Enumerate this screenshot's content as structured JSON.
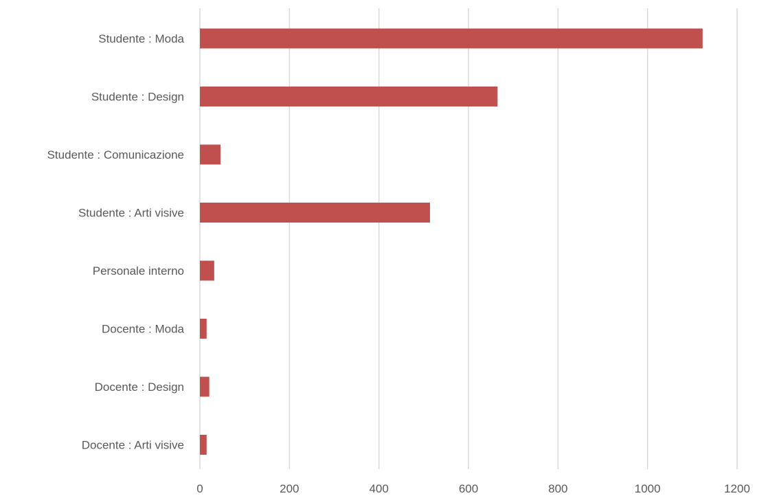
{
  "chart_data": {
    "type": "bar",
    "orientation": "horizontal",
    "title": "",
    "xlabel": "",
    "ylabel": "",
    "categories": [
      "Studente : Moda",
      "Studente : Design",
      "Studente : Comunicazione",
      "Studente : Arti visive",
      "Personale interno",
      "Docente : Moda",
      "Docente : Design",
      "Docente : Arti visive"
    ],
    "values": [
      1123,
      665,
      46,
      514,
      32,
      15,
      21,
      15
    ],
    "xlim": [
      0,
      1200
    ],
    "x_ticks": [
      "0",
      "200",
      "400",
      "600",
      "800",
      "1000",
      "1200"
    ],
    "grid": true,
    "legend": "none",
    "colors": {
      "bar": "#c0504d",
      "grid": "#d9d9d9",
      "text": "#595959"
    }
  }
}
